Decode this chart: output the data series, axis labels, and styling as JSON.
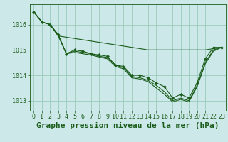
{
  "title": "Graphe pression niveau de la mer (hPa)",
  "bg_color": "#cce8e8",
  "grid_color": "#99ccbb",
  "line_color": "#1a5c1a",
  "marker_color": "#1a5c1a",
  "xlim": [
    -0.5,
    23.5
  ],
  "ylim": [
    1012.6,
    1016.8
  ],
  "yticks": [
    1013,
    1014,
    1015,
    1016
  ],
  "xticks": [
    0,
    1,
    2,
    3,
    4,
    5,
    6,
    7,
    8,
    9,
    10,
    11,
    12,
    13,
    14,
    15,
    16,
    17,
    18,
    19,
    20,
    21,
    22,
    23
  ],
  "series": [
    [
      1016.5,
      1016.1,
      1016.0,
      1015.55,
      1015.5,
      1015.45,
      1015.4,
      1015.35,
      1015.3,
      1015.25,
      1015.2,
      1015.15,
      1015.1,
      1015.05,
      1015.0,
      1015.0,
      1015.0,
      1015.0,
      1015.0,
      1015.0,
      1015.0,
      1015.0,
      1015.05,
      1015.1
    ],
    [
      1016.5,
      1016.1,
      1016.0,
      1015.6,
      1014.85,
      1015.0,
      1014.95,
      1014.85,
      1014.8,
      1014.75,
      1014.4,
      1014.35,
      1014.0,
      1014.0,
      1013.9,
      1013.7,
      1013.55,
      1013.1,
      1013.25,
      1013.1,
      1013.7,
      1014.65,
      1015.1,
      1015.1
    ],
    [
      1016.5,
      1016.1,
      1016.0,
      1015.6,
      1014.85,
      1014.95,
      1014.9,
      1014.85,
      1014.75,
      1014.7,
      1014.4,
      1014.3,
      1013.95,
      1013.9,
      1013.8,
      1013.6,
      1013.35,
      1013.0,
      1013.1,
      1013.0,
      1013.6,
      1014.5,
      1015.0,
      1015.1
    ],
    [
      1016.5,
      1016.1,
      1016.0,
      1015.55,
      1014.85,
      1014.9,
      1014.85,
      1014.8,
      1014.72,
      1014.65,
      1014.35,
      1014.25,
      1013.9,
      1013.85,
      1013.75,
      1013.5,
      1013.25,
      1012.95,
      1013.05,
      1012.95,
      1013.55,
      1014.45,
      1014.95,
      1015.1
    ]
  ],
  "marker_indices": [
    0
  ],
  "title_fontsize": 8,
  "tick_fontsize": 6,
  "label_fontsize": 8
}
